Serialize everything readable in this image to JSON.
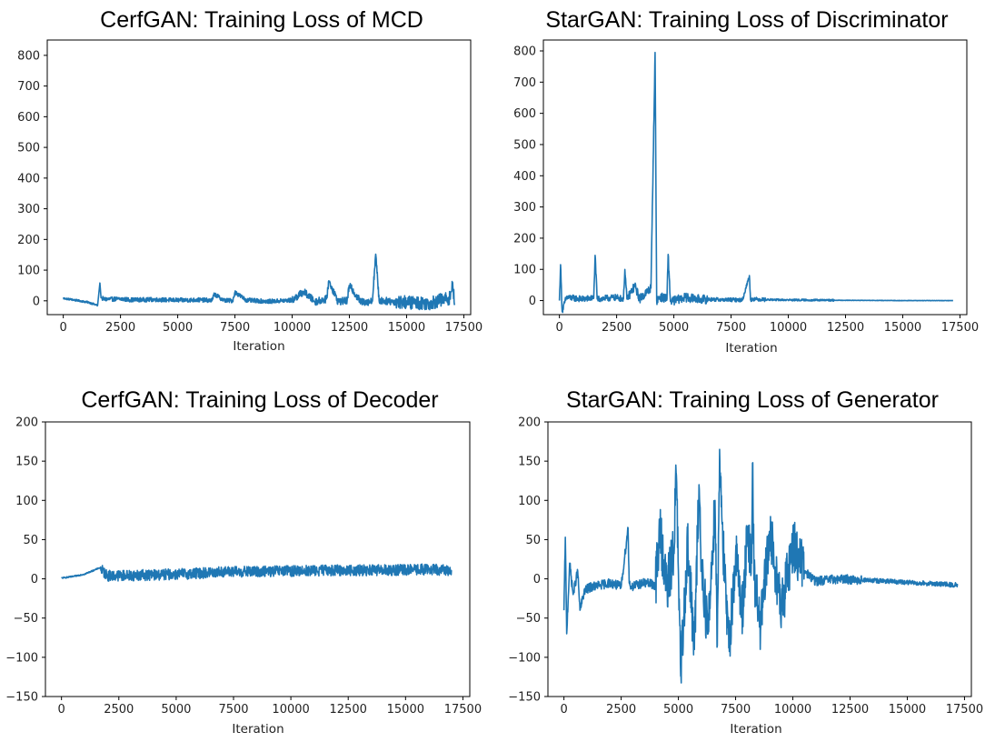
{
  "chart_data": [
    {
      "type": "line",
      "title": "CerfGAN: Training Loss of MCD",
      "xlabel": "Iteration",
      "ylabel": "",
      "xlim": [
        -700,
        17800
      ],
      "ylim": [
        -45,
        850
      ],
      "xticks": [
        0,
        2500,
        5000,
        7500,
        10000,
        12500,
        15000,
        17500
      ],
      "yticks": [
        0,
        100,
        200,
        300,
        400,
        500,
        600,
        700,
        800
      ],
      "color": "#1f77b4",
      "series": [
        {
          "name": "MCD loss",
          "x": [
            0,
            300,
            700,
            1100,
            1500,
            1600,
            1650,
            1800,
            2500,
            3000,
            4000,
            5000,
            6000,
            6500,
            6600,
            7000,
            7400,
            7500,
            8000,
            9000,
            10000,
            10500,
            11000,
            11500,
            11600,
            12000,
            12400,
            12500,
            13000,
            13500,
            13650,
            13800,
            14000,
            15000,
            16000,
            16900,
            17000,
            17100
          ],
          "y": [
            8,
            5,
            0,
            -5,
            -15,
            58,
            10,
            5,
            6,
            3,
            4,
            2,
            3,
            1,
            22,
            2,
            0,
            28,
            2,
            -2,
            2,
            30,
            -3,
            6,
            65,
            -2,
            0,
            50,
            -4,
            -2,
            152,
            0,
            0,
            -5,
            -8,
            10,
            60,
            -10
          ],
          "noise": [
            {
              "from": 0,
              "to": 1500,
              "amp": 3
            },
            {
              "from": 1700,
              "to": 10000,
              "amp": 7
            },
            {
              "from": 10000,
              "to": 14500,
              "amp": 12
            },
            {
              "from": 14500,
              "to": 17100,
              "amp": 22
            }
          ]
        }
      ]
    },
    {
      "type": "line",
      "title": "StarGAN: Training Loss of Discriminator",
      "xlabel": "Iteration",
      "ylabel": "",
      "xlim": [
        -700,
        17800
      ],
      "ylim": [
        -45,
        835
      ],
      "xticks": [
        0,
        2500,
        5000,
        7500,
        10000,
        12500,
        15000,
        17500
      ],
      "yticks": [
        0,
        100,
        200,
        300,
        400,
        500,
        600,
        700,
        800
      ],
      "color": "#1f77b4",
      "series": [
        {
          "name": "Discriminator loss",
          "x": [
            0,
            50,
            120,
            300,
            1000,
            1500,
            1560,
            1650,
            2500,
            2800,
            2860,
            2950,
            3300,
            3500,
            4000,
            4180,
            4250,
            4400,
            4700,
            4750,
            4850,
            5500,
            6000,
            7000,
            8000,
            8300,
            8350,
            8450,
            9000,
            10000,
            12000,
            15000,
            17200
          ],
          "y": [
            0,
            115,
            -35,
            10,
            5,
            8,
            145,
            5,
            10,
            5,
            100,
            5,
            48,
            5,
            40,
            795,
            0,
            12,
            5,
            148,
            -3,
            10,
            5,
            3,
            2,
            80,
            2,
            5,
            3,
            2,
            1,
            0,
            0
          ],
          "noise": [
            {
              "from": 0,
              "to": 3000,
              "amp": 10
            },
            {
              "from": 3000,
              "to": 6500,
              "amp": 14
            },
            {
              "from": 6500,
              "to": 9000,
              "amp": 6
            },
            {
              "from": 9000,
              "to": 12000,
              "amp": 3
            },
            {
              "from": 12000,
              "to": 17200,
              "amp": 0.6
            }
          ]
        }
      ]
    },
    {
      "type": "line",
      "title": "CerfGAN: Training Loss of Decoder",
      "xlabel": "Iteration",
      "ylabel": "",
      "xlim": [
        -700,
        17800
      ],
      "ylim": [
        -150,
        200
      ],
      "xticks": [
        0,
        2500,
        5000,
        7500,
        10000,
        12500,
        15000,
        17500
      ],
      "yticks": [
        -150,
        -100,
        -50,
        0,
        50,
        100,
        150,
        200
      ],
      "color": "#1f77b4",
      "series": [
        {
          "name": "Decoder loss",
          "x": [
            0,
            500,
            1000,
            1500,
            1650,
            2000,
            4000,
            6000,
            7000,
            8000,
            10000,
            12000,
            14000,
            16000,
            17000
          ],
          "y": [
            1,
            3,
            6,
            12,
            14,
            4,
            5,
            7,
            9,
            9,
            10,
            11,
            11,
            12,
            11
          ],
          "noise": [
            {
              "from": 0,
              "to": 1600,
              "amp": 0.8
            },
            {
              "from": 1700,
              "to": 17000,
              "amp": 7
            }
          ]
        }
      ]
    },
    {
      "type": "line",
      "title": "StarGAN: Training Loss of Generator",
      "xlabel": "Iteration",
      "ylabel": "",
      "xlim": [
        -700,
        17800
      ],
      "ylim": [
        -150,
        200
      ],
      "xticks": [
        0,
        2500,
        5000,
        7500,
        10000,
        12500,
        15000,
        17500
      ],
      "yticks": [
        -150,
        -100,
        -50,
        0,
        50,
        100,
        150,
        200
      ],
      "color": "#1f77b4",
      "series": [
        {
          "name": "Generator loss",
          "x": [
            0,
            60,
            120,
            250,
            400,
            600,
            700,
            900,
            1200,
            1600,
            2000,
            2500,
            2800,
            2850,
            2950,
            3500,
            4000,
            4200,
            4500,
            4800,
            4900,
            5000,
            5100,
            5400,
            5700,
            5900,
            6000,
            6300,
            6600,
            6700,
            6800,
            7000,
            7200,
            7500,
            7800,
            8000,
            8200,
            8250,
            8300,
            8600,
            9000,
            9500,
            10000,
            10500,
            11000,
            12000,
            14000,
            16000,
            17200
          ],
          "y": [
            -40,
            53,
            -70,
            20,
            -20,
            10,
            -40,
            -15,
            -10,
            -8,
            -5,
            -10,
            65,
            -5,
            -10,
            -5,
            -8,
            62,
            -15,
            40,
            136,
            10,
            -124,
            45,
            -90,
            120,
            20,
            -70,
            100,
            -85,
            165,
            10,
            -88,
            30,
            -40,
            50,
            20,
            148,
            0,
            -60,
            60,
            -40,
            45,
            10,
            -3,
            0,
            -3,
            -6,
            -8
          ],
          "noise": [
            {
              "from": 0,
              "to": 4000,
              "amp": 6
            },
            {
              "from": 4000,
              "to": 10500,
              "amp": 35
            },
            {
              "from": 10500,
              "to": 13000,
              "amp": 6
            },
            {
              "from": 13000,
              "to": 17200,
              "amp": 3
            }
          ]
        }
      ]
    }
  ]
}
